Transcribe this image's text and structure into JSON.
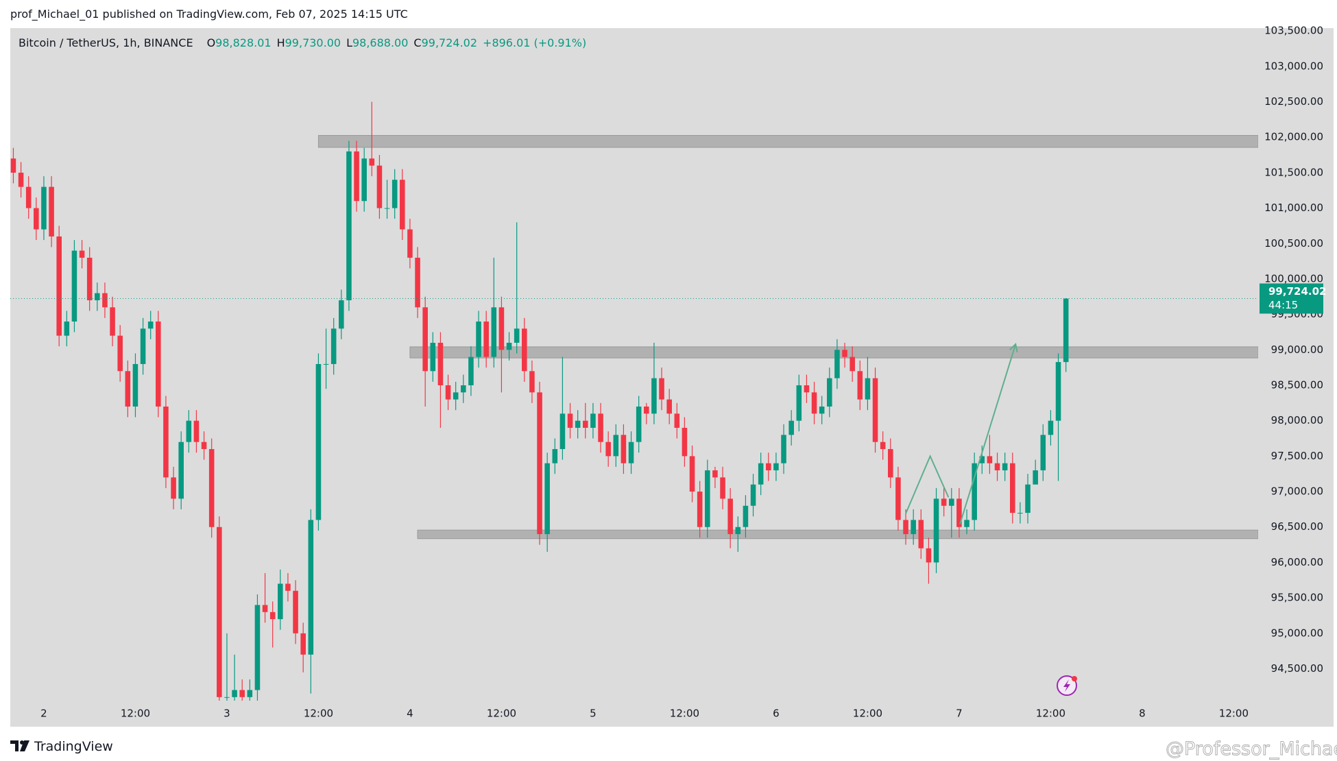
{
  "chart_data": {
    "type": "candlestick",
    "published": "prof_Michael_01 published on TradingView.com, Feb 07, 2025 14:15 UTC",
    "symbol": "Bitcoin / TetherUS, 1h, BINANCE",
    "ohlc_legend": [
      {
        "key": "O",
        "value": "98,828.01"
      },
      {
        "key": "H",
        "value": "99,730.00"
      },
      {
        "key": "L",
        "value": "98,688.00"
      },
      {
        "key": "C",
        "value": "99,724.02"
      }
    ],
    "change": "+896.01 (+0.91%)",
    "price_tag": {
      "label": "99,724.02",
      "countdown": "44:15"
    },
    "brand": "TradingView",
    "watermark": "@Professor_Michael",
    "up_color": "#089981",
    "down_color": "#f23645",
    "grid": false,
    "xlim": [
      -0.4,
      163.2
    ],
    "ylim": [
      94050,
      103540
    ],
    "xticks": [
      {
        "value": 4,
        "label": "2"
      },
      {
        "value": 16,
        "label": "12:00"
      },
      {
        "value": 28,
        "label": "3"
      },
      {
        "value": 40,
        "label": "12:00"
      },
      {
        "value": 52,
        "label": "4"
      },
      {
        "value": 64,
        "label": "12:00"
      },
      {
        "value": 76,
        "label": "5"
      },
      {
        "value": 88,
        "label": "12:00"
      },
      {
        "value": 100,
        "label": "6"
      },
      {
        "value": 112,
        "label": "12:00"
      },
      {
        "value": 124,
        "label": "7"
      },
      {
        "value": 136,
        "label": "12:00"
      },
      {
        "value": 148,
        "label": "8"
      },
      {
        "value": 160,
        "label": "12:00"
      }
    ],
    "yticks": [
      {
        "value": 94500,
        "label": "94,500.00"
      },
      {
        "value": 95000,
        "label": "95,000.00"
      },
      {
        "value": 95500,
        "label": "95,500.00"
      },
      {
        "value": 96000,
        "label": "96,000.00"
      },
      {
        "value": 96500,
        "label": "96,500.00"
      },
      {
        "value": 97000,
        "label": "97,000.00"
      },
      {
        "value": 97500,
        "label": "97,500.00"
      },
      {
        "value": 98000,
        "label": "98,000.00"
      },
      {
        "value": 98500,
        "label": "98,500.00"
      },
      {
        "value": 99000,
        "label": "99,000.00"
      },
      {
        "value": 99500,
        "label": "99,500.00"
      },
      {
        "value": 100000,
        "label": "100,000.00"
      },
      {
        "value": 100500,
        "label": "100,500.00"
      },
      {
        "value": 101000,
        "label": "101,000.00"
      },
      {
        "value": 101500,
        "label": "101,500.00"
      },
      {
        "value": 102000,
        "label": "102,000.00"
      },
      {
        "value": 102500,
        "label": "102,500.00"
      },
      {
        "value": 103000,
        "label": "103,000.00"
      },
      {
        "value": 103500,
        "label": "103,500.00"
      }
    ],
    "zones": [
      {
        "start": 40,
        "low": 101857,
        "high": 102026
      },
      {
        "start": 52,
        "low": 98886,
        "high": 99043
      },
      {
        "start": 53,
        "low": 96336,
        "high": 96457
      }
    ],
    "drawings": [
      {
        "color": "#5fae8f",
        "arrow": false,
        "x": [
          117,
          120.2,
          122.6
        ],
        "y": [
          96690,
          97500,
          96920
        ]
      },
      {
        "color": "#5fae8f",
        "arrow": true,
        "x": [
          124.1,
          131.4
        ],
        "y": [
          96540,
          99080
        ]
      }
    ],
    "open": [
      101700,
      101500,
      101300,
      101000,
      100700,
      101300,
      100600,
      99200,
      99400,
      100400,
      100300,
      99700,
      99800,
      99600,
      99200,
      98700,
      98200,
      98800,
      99300,
      99400,
      98200,
      97200,
      96900,
      97700,
      98000,
      97700,
      97600,
      96500,
      94100,
      94100,
      94200,
      94100,
      94200,
      95400,
      95300,
      95200,
      95700,
      95600,
      95000,
      94700,
      96600,
      98800,
      98800,
      99300,
      99700,
      101800,
      101100,
      101700,
      101600,
      101000,
      101000,
      101400,
      100700,
      100300,
      99600,
      98700,
      99100,
      98500,
      98300,
      98400,
      98500,
      98900,
      99400,
      98900,
      99600,
      99000,
      99100,
      99300,
      98700,
      98400,
      96400,
      97400,
      97600,
      98100,
      97900,
      98000,
      97900,
      98100,
      97700,
      97500,
      97800,
      97400,
      97700,
      98200,
      98100,
      98600,
      98300,
      98100,
      97900,
      97500,
      97000,
      96500,
      97300,
      97200,
      96900,
      96400,
      96500,
      96800,
      97100,
      97400,
      97300,
      97400,
      97800,
      98000,
      98500,
      98400,
      98100,
      98200,
      98600,
      99000,
      98900,
      98700,
      98300,
      98600,
      97700,
      97600,
      97200,
      96600,
      96400,
      96600,
      96200,
      96000,
      96900,
      96800,
      96900,
      96500,
      96600,
      97400,
      97500,
      97400,
      97300,
      97400,
      96700,
      96700,
      97100,
      97300,
      97800,
      98000,
      98828.01
    ],
    "high": [
      101850,
      101650,
      101450,
      101150,
      101450,
      101450,
      100750,
      99550,
      100550,
      100550,
      100450,
      99950,
      99950,
      99750,
      99350,
      98850,
      98950,
      99450,
      99550,
      99550,
      98350,
      97350,
      97850,
      98150,
      98150,
      97850,
      97750,
      96650,
      95000,
      94700,
      94350,
      94350,
      95550,
      95850,
      95450,
      95900,
      95850,
      95750,
      95150,
      96750,
      98950,
      99300,
      99450,
      99850,
      101950,
      101950,
      101850,
      102500,
      101750,
      101400,
      101550,
      101550,
      100850,
      100450,
      99750,
      99250,
      99250,
      98650,
      98550,
      98650,
      99050,
      99550,
      99550,
      100300,
      99750,
      99250,
      100800,
      99450,
      98850,
      98550,
      97550,
      97750,
      98900,
      98250,
      98150,
      98250,
      98250,
      98250,
      97850,
      97950,
      97950,
      97850,
      98350,
      98250,
      99100,
      98750,
      98450,
      98250,
      98050,
      97650,
      97150,
      97450,
      97350,
      97350,
      97050,
      96650,
      96950,
      97250,
      97550,
      97550,
      97550,
      97950,
      98150,
      98650,
      98650,
      98550,
      98350,
      98750,
      99150,
      99100,
      99050,
      98850,
      98900,
      98750,
      97850,
      97750,
      97350,
      96750,
      96750,
      96750,
      96350,
      97050,
      97050,
      97050,
      97050,
      96750,
      97550,
      97650,
      97800,
      97550,
      97550,
      97550,
      96850,
      97250,
      97450,
      97950,
      98150,
      98950,
      99730
    ],
    "low": [
      101350,
      101150,
      100850,
      100550,
      100550,
      100450,
      99050,
      99050,
      99250,
      100150,
      99550,
      99550,
      99450,
      99050,
      98550,
      98050,
      98050,
      98650,
      99150,
      98050,
      97050,
      96750,
      96750,
      97550,
      97550,
      97450,
      96350,
      93950,
      93950,
      93950,
      93950,
      93950,
      94050,
      95150,
      94800,
      95050,
      95450,
      94850,
      94450,
      94150,
      96450,
      98450,
      98650,
      99150,
      99550,
      100950,
      100950,
      101450,
      100850,
      100850,
      100850,
      100550,
      100150,
      99450,
      98200,
      98550,
      97900,
      98150,
      98150,
      98250,
      98350,
      98750,
      98750,
      98750,
      98400,
      98850,
      98950,
      98550,
      98250,
      96250,
      96150,
      97250,
      97450,
      97750,
      97750,
      97750,
      97750,
      97550,
      97350,
      97350,
      97250,
      97250,
      97550,
      97950,
      97950,
      98150,
      97950,
      97750,
      97350,
      96850,
      96350,
      96350,
      97050,
      96750,
      96200,
      96150,
      96350,
      96650,
      96950,
      97150,
      97150,
      97250,
      97650,
      97850,
      98250,
      97950,
      97950,
      98050,
      98450,
      98750,
      98550,
      98150,
      98150,
      97550,
      97450,
      97050,
      96450,
      96250,
      96250,
      96050,
      95700,
      95850,
      96650,
      96350,
      96350,
      96400,
      96450,
      97250,
      97250,
      97150,
      97150,
      96550,
      96550,
      96550,
      97150,
      97150,
      97650,
      97150,
      98688
    ],
    "close": [
      101500,
      101300,
      101000,
      100700,
      101300,
      100600,
      99200,
      99400,
      100400,
      100300,
      99700,
      99800,
      99600,
      99200,
      98700,
      98200,
      98800,
      99300,
      99400,
      98200,
      97200,
      96900,
      97700,
      98000,
      97700,
      97600,
      96500,
      94100,
      94100,
      94200,
      94100,
      94200,
      95400,
      95300,
      95200,
      95700,
      95600,
      95000,
      94700,
      96600,
      98800,
      98800,
      99300,
      99700,
      101800,
      101100,
      101700,
      101600,
      101000,
      101000,
      101400,
      100700,
      100300,
      99600,
      98700,
      99100,
      98500,
      98300,
      98400,
      98500,
      98900,
      99400,
      98900,
      99600,
      99000,
      99100,
      99300,
      98700,
      98400,
      96400,
      97400,
      97600,
      98100,
      97900,
      98000,
      97900,
      98100,
      97700,
      97500,
      97800,
      97400,
      97700,
      98200,
      98100,
      98600,
      98300,
      98100,
      97900,
      97500,
      97000,
      96500,
      97300,
      97200,
      96900,
      96400,
      96500,
      96800,
      97100,
      97400,
      97300,
      97400,
      97800,
      98000,
      98500,
      98400,
      98100,
      98200,
      98600,
      99000,
      98900,
      98700,
      98300,
      98600,
      97700,
      97600,
      97200,
      96600,
      96400,
      96600,
      96200,
      96000,
      96900,
      96800,
      96900,
      96500,
      96600,
      97400,
      97500,
      97400,
      97300,
      97400,
      96700,
      96700,
      97100,
      97300,
      97800,
      98000,
      98828.01,
      99724.02
    ]
  }
}
